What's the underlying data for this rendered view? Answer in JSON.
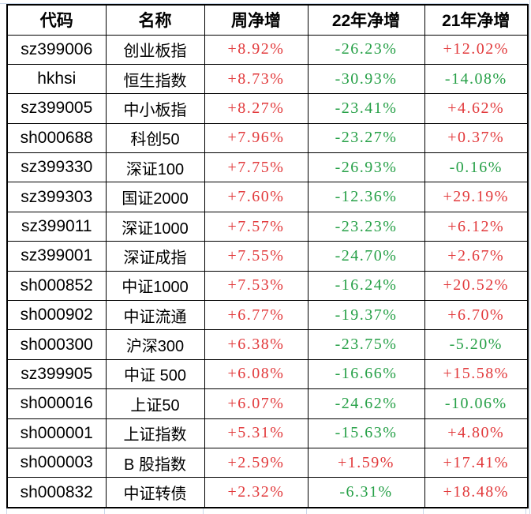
{
  "chart_data": {
    "type": "table",
    "columns": [
      "代码",
      "名称",
      "周净增",
      "22年净增",
      "21年净增"
    ],
    "rows": [
      [
        "sz399006",
        "创业板指",
        "+8.92%",
        "-26.23%",
        "+12.02%"
      ],
      [
        "hkhsi",
        "恒生指数",
        "+8.73%",
        "-30.93%",
        "-14.08%"
      ],
      [
        "sz399005",
        "中小板指",
        "+8.27%",
        "-23.41%",
        "+4.62%"
      ],
      [
        "sh000688",
        "科创50",
        "+7.96%",
        "-23.27%",
        "+0.37%"
      ],
      [
        "sz399330",
        "深证100",
        "+7.75%",
        "-26.93%",
        "-0.16%"
      ],
      [
        "sz399303",
        "国证2000",
        "+7.60%",
        "-12.36%",
        "+29.19%"
      ],
      [
        "sz399011",
        "深证1000",
        "+7.57%",
        "-23.23%",
        "+6.12%"
      ],
      [
        "sz399001",
        "深证成指",
        "+7.55%",
        "-24.70%",
        "+2.67%"
      ],
      [
        "sh000852",
        "中证1000",
        "+7.53%",
        "-16.24%",
        "+20.52%"
      ],
      [
        "sh000902",
        "中证流通",
        "+6.77%",
        "-19.37%",
        "+6.70%"
      ],
      [
        "sh000300",
        "沪深300",
        "+6.38%",
        "-23.75%",
        "-5.20%"
      ],
      [
        "sz399905",
        "中证 500",
        "+6.08%",
        "-16.66%",
        "+15.58%"
      ],
      [
        "sh000016",
        "上证50",
        "+6.07%",
        "-24.62%",
        "-10.06%"
      ],
      [
        "sh000001",
        "上证指数",
        "+5.31%",
        "-15.63%",
        "+4.80%"
      ],
      [
        "sh000003",
        "B 股指数",
        "+2.59%",
        "+1.59%",
        "+17.41%"
      ],
      [
        "sh000832",
        "中证转债",
        "+2.32%",
        "-6.31%",
        "+18.48%"
      ]
    ]
  },
  "colors": {
    "positive": "#e23a3c",
    "negative": "#26a047",
    "text": "#000000",
    "border": "#000000",
    "gridline": "#c9d7ea",
    "background": "#ffffff"
  }
}
